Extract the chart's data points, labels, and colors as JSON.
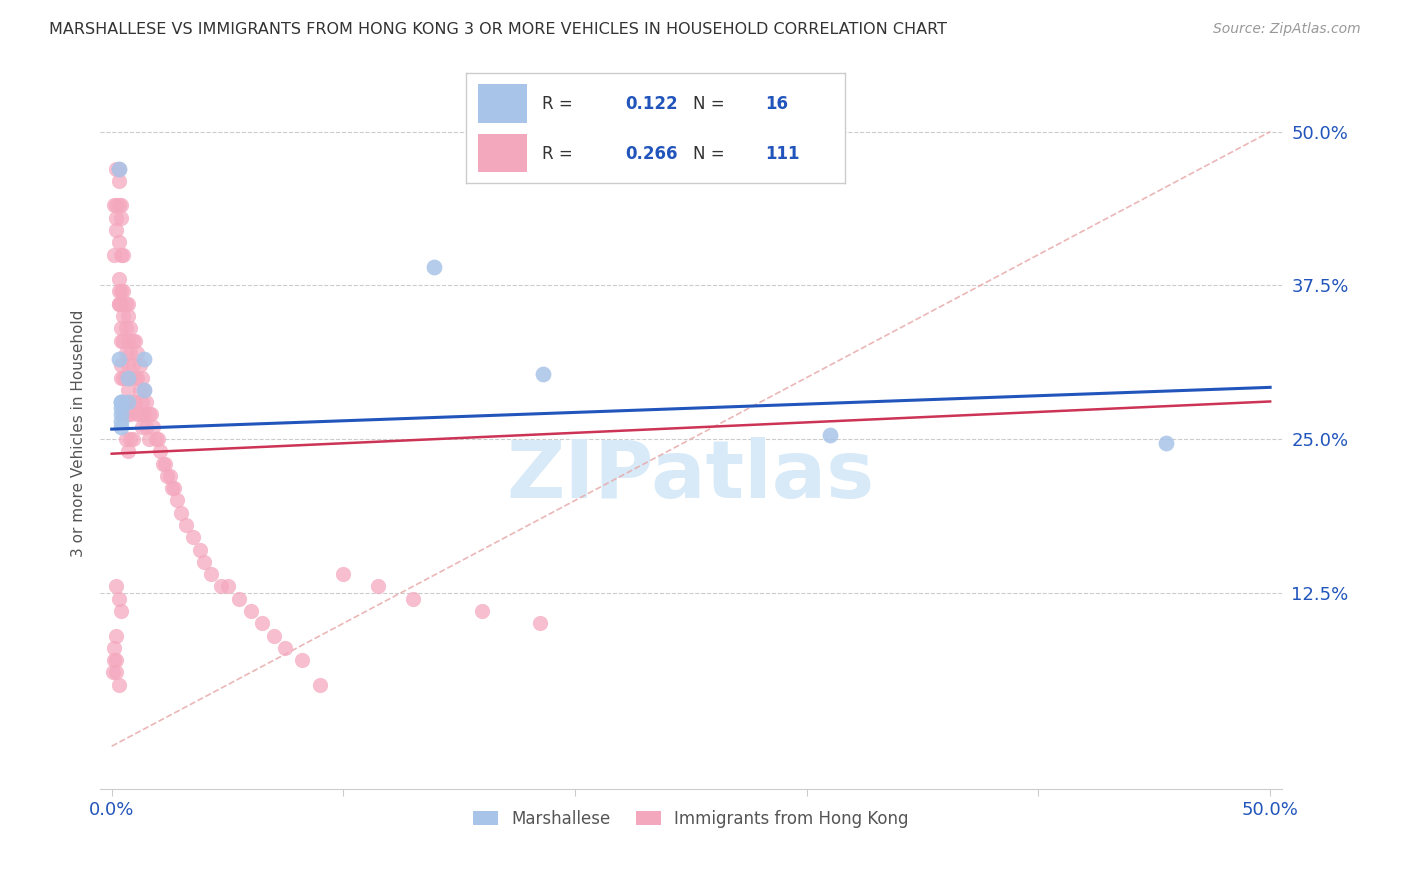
{
  "title": "MARSHALLESE VS IMMIGRANTS FROM HONG KONG 3 OR MORE VEHICLES IN HOUSEHOLD CORRELATION CHART",
  "source": "Source: ZipAtlas.com",
  "ylabel": "3 or more Vehicles in Household",
  "ytick_labels": [
    "50.0%",
    "37.5%",
    "25.0%",
    "12.5%"
  ],
  "ytick_values": [
    0.5,
    0.375,
    0.25,
    0.125
  ],
  "xlim": [
    -0.005,
    0.505
  ],
  "ylim": [
    -0.035,
    0.545
  ],
  "legend_blue_r": "0.122",
  "legend_blue_n": "16",
  "legend_pink_r": "0.266",
  "legend_pink_n": "111",
  "blue_color": "#a8c4e8",
  "pink_color": "#f4a8be",
  "blue_line_color": "#2255bb",
  "pink_line_color": "#cc3355",
  "diag_line_color": "#e8aaaa",
  "watermark_color": "#d8eaf8",
  "watermark": "ZIPatlas",
  "blue_line_intercept": 0.258,
  "blue_line_slope": 0.068,
  "pink_line_intercept": 0.238,
  "pink_line_slope": 0.085,
  "blue_scatter_x": [
    0.003,
    0.004,
    0.004,
    0.004,
    0.004,
    0.004,
    0.004,
    0.007,
    0.007,
    0.014,
    0.014,
    0.139,
    0.186,
    0.31,
    0.455,
    0.003
  ],
  "blue_scatter_y": [
    0.47,
    0.275,
    0.27,
    0.28,
    0.265,
    0.26,
    0.28,
    0.3,
    0.28,
    0.315,
    0.29,
    0.39,
    0.303,
    0.253,
    0.247,
    0.315
  ],
  "pink_scatter_x": [
    0.0005,
    0.001,
    0.001,
    0.001,
    0.001,
    0.002,
    0.002,
    0.002,
    0.002,
    0.002,
    0.002,
    0.002,
    0.003,
    0.003,
    0.003,
    0.003,
    0.003,
    0.003,
    0.003,
    0.003,
    0.003,
    0.004,
    0.004,
    0.004,
    0.004,
    0.004,
    0.004,
    0.004,
    0.004,
    0.004,
    0.005,
    0.005,
    0.005,
    0.005,
    0.005,
    0.005,
    0.006,
    0.006,
    0.006,
    0.006,
    0.006,
    0.006,
    0.007,
    0.007,
    0.007,
    0.007,
    0.007,
    0.007,
    0.007,
    0.008,
    0.008,
    0.008,
    0.008,
    0.008,
    0.009,
    0.009,
    0.009,
    0.009,
    0.01,
    0.01,
    0.01,
    0.011,
    0.011,
    0.011,
    0.012,
    0.012,
    0.012,
    0.013,
    0.013,
    0.013,
    0.014,
    0.014,
    0.015,
    0.015,
    0.016,
    0.016,
    0.017,
    0.018,
    0.019,
    0.02,
    0.021,
    0.022,
    0.023,
    0.024,
    0.025,
    0.026,
    0.027,
    0.028,
    0.03,
    0.032,
    0.035,
    0.038,
    0.04,
    0.043,
    0.047,
    0.05,
    0.055,
    0.06,
    0.065,
    0.07,
    0.075,
    0.082,
    0.09,
    0.1,
    0.115,
    0.13,
    0.16,
    0.185,
    0.002,
    0.003,
    0.004
  ],
  "pink_scatter_y": [
    0.06,
    0.44,
    0.4,
    0.08,
    0.07,
    0.43,
    0.42,
    0.09,
    0.07,
    0.47,
    0.06,
    0.44,
    0.47,
    0.46,
    0.44,
    0.41,
    0.38,
    0.37,
    0.36,
    0.36,
    0.05,
    0.44,
    0.43,
    0.4,
    0.37,
    0.36,
    0.34,
    0.33,
    0.31,
    0.3,
    0.4,
    0.37,
    0.35,
    0.33,
    0.3,
    0.27,
    0.36,
    0.34,
    0.32,
    0.3,
    0.28,
    0.25,
    0.36,
    0.35,
    0.33,
    0.31,
    0.29,
    0.27,
    0.24,
    0.34,
    0.32,
    0.3,
    0.27,
    0.25,
    0.33,
    0.31,
    0.28,
    0.25,
    0.33,
    0.3,
    0.28,
    0.32,
    0.3,
    0.27,
    0.31,
    0.29,
    0.27,
    0.3,
    0.28,
    0.26,
    0.29,
    0.27,
    0.28,
    0.26,
    0.27,
    0.25,
    0.27,
    0.26,
    0.25,
    0.25,
    0.24,
    0.23,
    0.23,
    0.22,
    0.22,
    0.21,
    0.21,
    0.2,
    0.19,
    0.18,
    0.17,
    0.16,
    0.15,
    0.14,
    0.13,
    0.13,
    0.12,
    0.11,
    0.1,
    0.09,
    0.08,
    0.07,
    0.05,
    0.14,
    0.13,
    0.12,
    0.11,
    0.1,
    0.13,
    0.12,
    0.11
  ]
}
